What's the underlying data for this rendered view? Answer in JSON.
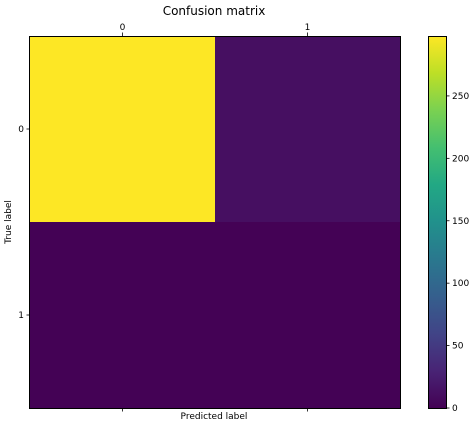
{
  "chart_data": {
    "type": "heatmap",
    "title": "Confusion matrix",
    "xlabel": "Predicted label",
    "ylabel": "True label",
    "x_categories": [
      "0",
      "1"
    ],
    "y_categories": [
      "0",
      "1"
    ],
    "matrix": [
      [
        298,
        12
      ],
      [
        1,
        1
      ]
    ],
    "x_ticks_position": "top",
    "colormap": "viridis",
    "colorbar": {
      "range": [
        0,
        298
      ],
      "ticks": [
        0,
        50,
        100,
        150,
        200,
        250
      ],
      "tick_labels": [
        "0",
        "50",
        "100",
        "150",
        "200",
        "250"
      ]
    },
    "colors": {
      "high": "#fde725",
      "low": "#440154",
      "off_diagonal_top": "#470e61"
    }
  }
}
